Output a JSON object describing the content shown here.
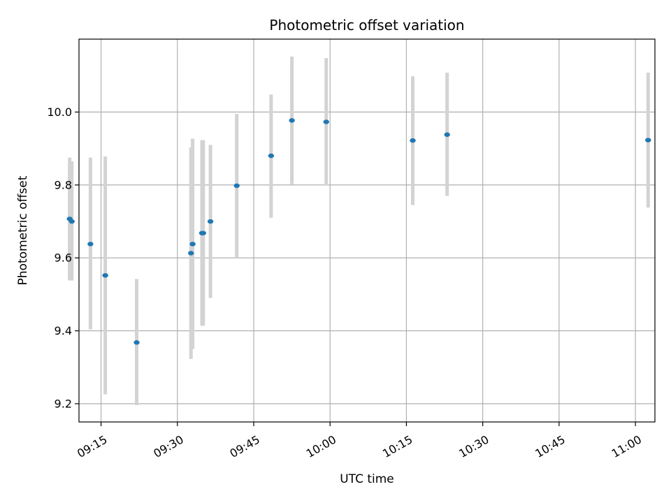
{
  "chart_data": {
    "type": "scatter",
    "title": "Photometric offset variation",
    "xlabel": "UTC time",
    "ylabel": "Photometric offset",
    "x_axis_type": "time",
    "xlim": [
      "09:10:40",
      "11:03:50"
    ],
    "ylim": [
      9.15,
      10.2
    ],
    "grid": true,
    "xticks": [
      "09:15",
      "09:30",
      "09:45",
      "10:00",
      "10:15",
      "10:30",
      "10:45",
      "11:00"
    ],
    "yticks": [
      9.2,
      9.4,
      9.6,
      9.8,
      10.0
    ],
    "ytick_labels": [
      "9.2",
      "9.4",
      "9.6",
      "9.8",
      "10.0"
    ],
    "point_color": "#1f77b4",
    "errorbar_color": "#d3d3d3",
    "points": [
      {
        "time": "09:08:50",
        "y": 9.707,
        "low": 9.538,
        "high": 9.875
      },
      {
        "time": "09:09:15",
        "y": 9.7,
        "low": 9.538,
        "high": 9.865
      },
      {
        "time": "09:12:55",
        "y": 9.638,
        "low": 9.404,
        "high": 9.875
      },
      {
        "time": "09:15:50",
        "y": 9.552,
        "low": 9.226,
        "high": 9.878
      },
      {
        "time": "09:22:00",
        "y": 9.368,
        "low": 9.196,
        "high": 9.542
      },
      {
        "time": "09:32:40",
        "y": 9.613,
        "low": 9.323,
        "high": 9.903
      },
      {
        "time": "09:33:00",
        "y": 9.638,
        "low": 9.35,
        "high": 9.927
      },
      {
        "time": "09:34:50",
        "y": 9.668,
        "low": 9.414,
        "high": 9.923
      },
      {
        "time": "09:35:05",
        "y": 9.668,
        "low": 9.414,
        "high": 9.923
      },
      {
        "time": "09:36:30",
        "y": 9.7,
        "low": 9.49,
        "high": 9.91
      },
      {
        "time": "09:41:40",
        "y": 9.798,
        "low": 9.6,
        "high": 9.995
      },
      {
        "time": "09:48:25",
        "y": 9.88,
        "low": 9.71,
        "high": 10.048
      },
      {
        "time": "09:52:30",
        "y": 9.977,
        "low": 9.802,
        "high": 10.152
      },
      {
        "time": "09:59:15",
        "y": 9.973,
        "low": 9.798,
        "high": 10.148
      },
      {
        "time": "10:16:15",
        "y": 9.922,
        "low": 9.745,
        "high": 10.098
      },
      {
        "time": "10:23:00",
        "y": 9.938,
        "low": 9.77,
        "high": 10.108
      },
      {
        "time": "11:02:30",
        "y": 9.923,
        "low": 9.738,
        "high": 10.108
      }
    ]
  }
}
